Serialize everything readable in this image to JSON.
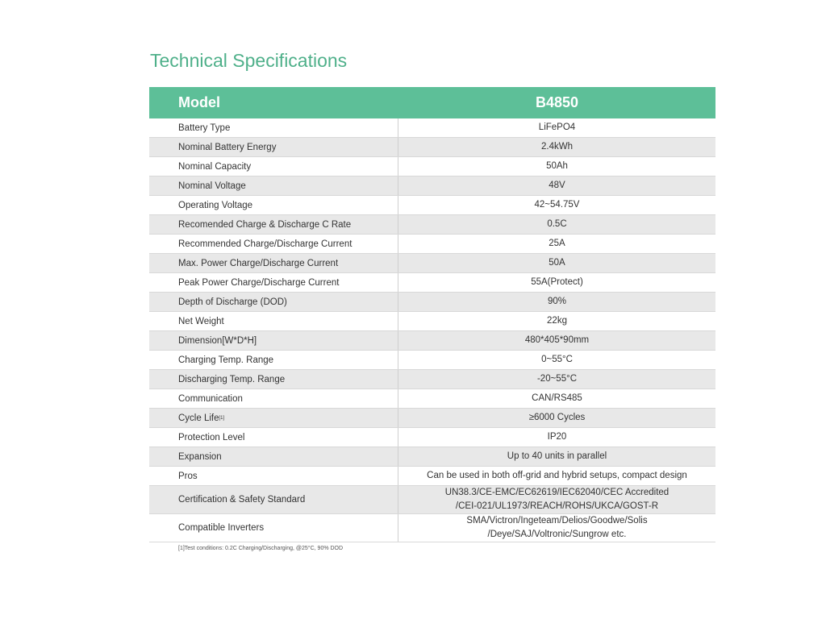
{
  "title": "Technical Specifications",
  "table": {
    "header": [
      "Model",
      "B4850"
    ],
    "rows": [
      {
        "label": "Battery Type",
        "value": [
          "LiFePO4"
        ]
      },
      {
        "label": "Nominal Battery Energy",
        "value": [
          "2.4kWh"
        ]
      },
      {
        "label": "Nominal Capacity",
        "value": [
          "50Ah"
        ]
      },
      {
        "label": "Nominal Voltage",
        "value": [
          "48V"
        ]
      },
      {
        "label": "Operating Voltage",
        "value": [
          "42~54.75V"
        ]
      },
      {
        "label": "Recomended Charge & Discharge C Rate",
        "value": [
          "0.5C"
        ]
      },
      {
        "label": "Recommended Charge/Discharge Current",
        "value": [
          "25A"
        ]
      },
      {
        "label": "Max. Power Charge/Discharge Current",
        "value": [
          "50A"
        ]
      },
      {
        "label": "Peak Power Charge/Discharge Current",
        "value": [
          "55A(Protect)"
        ]
      },
      {
        "label": "Depth of Discharge (DOD)",
        "value": [
          "90%"
        ]
      },
      {
        "label": "Net Weight",
        "value": [
          "22kg"
        ]
      },
      {
        "label": "Dimension[W*D*H]",
        "value": [
          "480*405*90mm"
        ]
      },
      {
        "label": "Charging Temp. Range",
        "value": [
          "0~55°C"
        ]
      },
      {
        "label": "Discharging Temp. Range",
        "value": [
          "-20~55°C"
        ]
      },
      {
        "label": "Communication",
        "value": [
          "CAN/RS485"
        ]
      },
      {
        "label": "Cycle Life",
        "note": "[1]",
        "value": [
          "≥6000 Cycles"
        ]
      },
      {
        "label": "Protection Level",
        "value": [
          "IP20"
        ]
      },
      {
        "label": "Expansion",
        "value": [
          "Up to 40 units in parallel"
        ]
      },
      {
        "label": "Pros",
        "value": [
          "Can be used in both off-grid and hybrid setups, compact design"
        ]
      },
      {
        "label": "Certification & Safety Standard",
        "value": [
          "UN38.3/CE-EMC/EC62619/IEC62040/CEC Accredited",
          "/CEI-021/UL1973/REACH/ROHS/UKCA/GOST-R"
        ]
      },
      {
        "label": "Compatible Inverters",
        "value": [
          "SMA/Victron/Ingeteam/Delios/Goodwe/Solis",
          "/Deye/SAJ/Voltronic/Sungrow etc."
        ]
      }
    ]
  },
  "footnote": "[1]Test conditions: 0.2C Charging/Discharging, @25°C, 90% DOD"
}
